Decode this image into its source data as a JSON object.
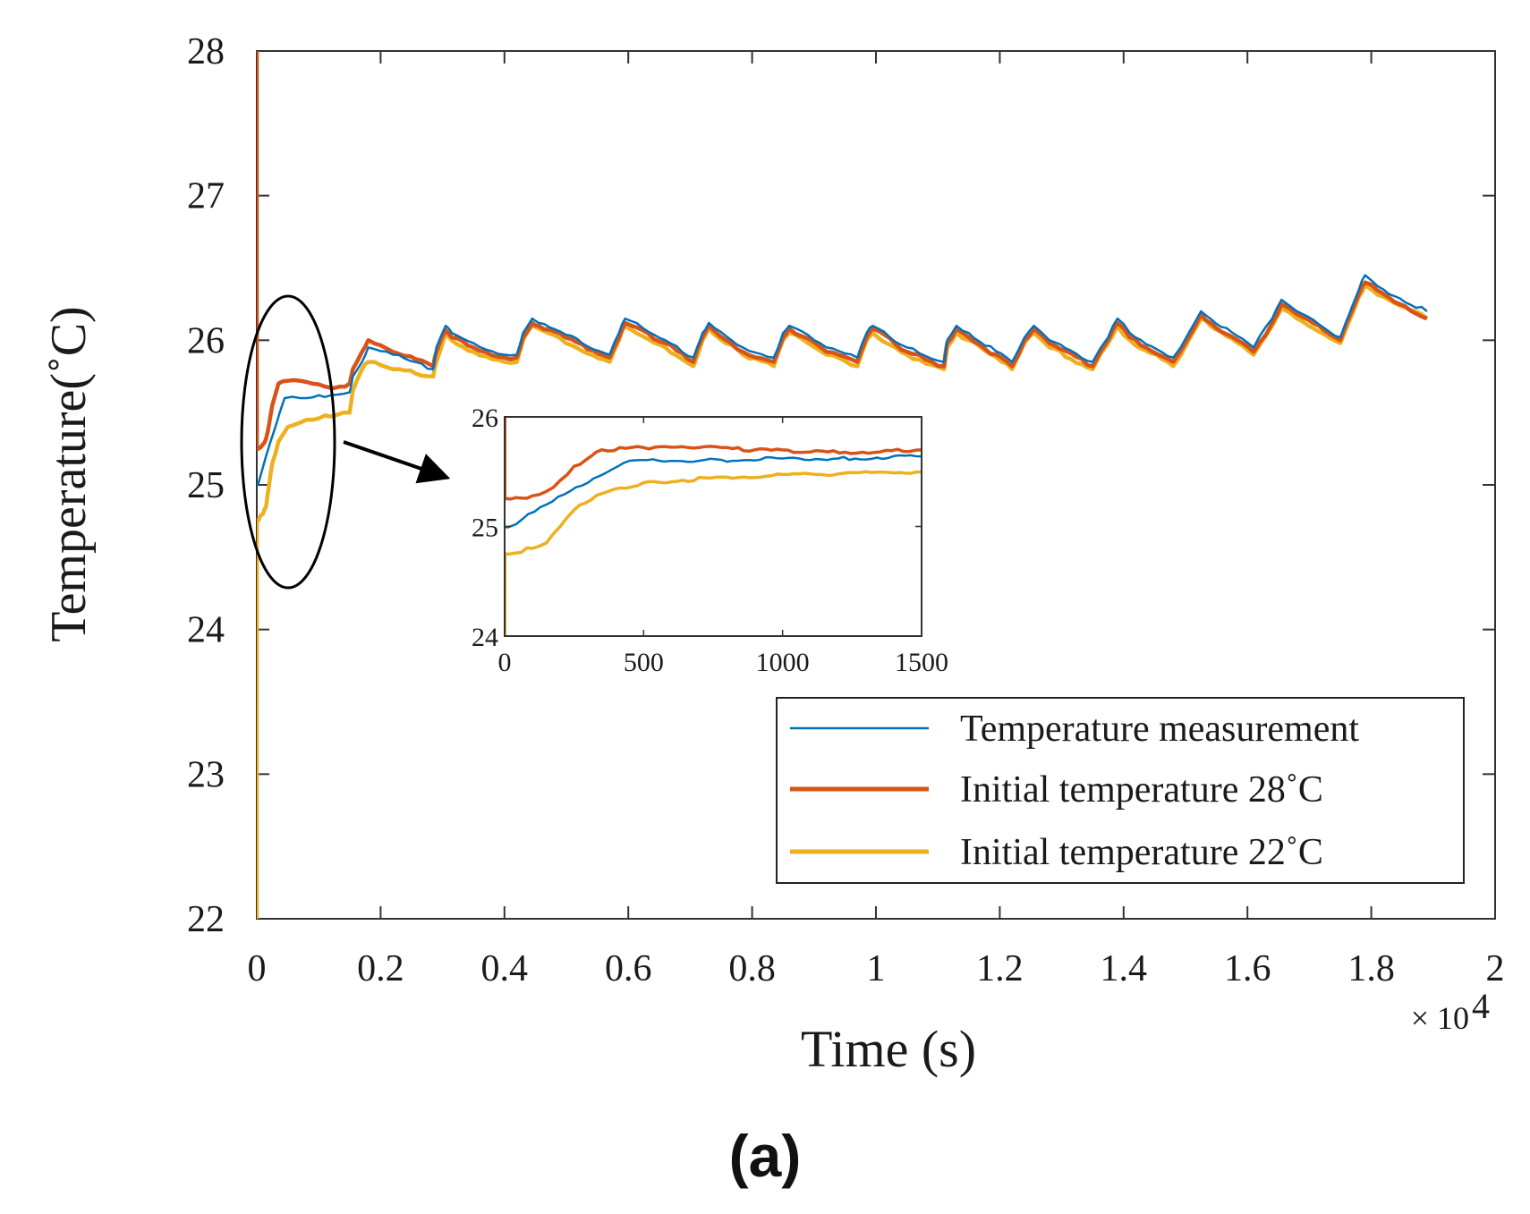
{
  "chart_data": {
    "type": "line",
    "panel_label": "(a)",
    "xlabel": "Time (s)",
    "ylabel": "Temperature(˚C)",
    "x_exponent": "× 10",
    "x_exponent_power": "4",
    "xlim": [
      0,
      20000
    ],
    "ylim": [
      22,
      28
    ],
    "x_ticks": [
      0,
      2000,
      4000,
      6000,
      8000,
      10000,
      12000,
      14000,
      16000,
      18000,
      20000
    ],
    "x_tick_labels": [
      "0",
      "0.2",
      "0.4",
      "0.6",
      "0.8",
      "1",
      "1.2",
      "1.4",
      "1.6",
      "1.8",
      "2"
    ],
    "y_ticks": [
      22,
      23,
      24,
      25,
      26,
      27,
      28
    ],
    "y_tick_labels": [
      "22",
      "23",
      "24",
      "25",
      "26",
      "27",
      "28"
    ],
    "legend_position": "bottom-right",
    "series": [
      {
        "name": "Temperature measurement",
        "color": "#0072BD",
        "x": [
          0,
          20,
          150,
          300,
          450,
          700,
          1000,
          1200,
          1500,
          1550,
          1700,
          1800,
          2200,
          2850,
          2900,
          3050,
          3150,
          3500,
          4000,
          4200,
          4300,
          4450,
          4550,
          5700,
          5850,
          5950,
          6600,
          7050,
          7200,
          7300,
          7850,
          8350,
          8500,
          8600,
          9200,
          9700,
          9850,
          9950,
          10500,
          11100,
          11150,
          11300,
          11500,
          12200,
          12400,
          12550,
          12800,
          13500,
          13750,
          13900,
          14100,
          14800,
          15050,
          15250,
          15400,
          16100,
          16400,
          16550,
          16800,
          17500,
          17800,
          17900,
          18200,
          18900
        ],
        "values": [
          25.0,
          25.0,
          25.2,
          25.4,
          25.6,
          25.6,
          25.62,
          25.62,
          25.64,
          25.75,
          25.85,
          25.95,
          25.9,
          25.8,
          25.95,
          26.1,
          26.05,
          25.98,
          25.9,
          25.9,
          26.05,
          26.15,
          26.12,
          25.9,
          26.05,
          26.15,
          26.0,
          25.88,
          26.05,
          26.12,
          25.95,
          25.88,
          26.05,
          26.1,
          25.95,
          25.88,
          26.05,
          26.1,
          25.95,
          25.85,
          26.0,
          26.1,
          26.05,
          25.85,
          26.02,
          26.1,
          26.0,
          25.85,
          26.02,
          26.15,
          26.05,
          25.88,
          26.05,
          26.2,
          26.15,
          25.95,
          26.15,
          26.28,
          26.2,
          26.02,
          26.35,
          26.45,
          26.35,
          26.2
        ]
      },
      {
        "name": "Initial temperature 28˚C",
        "color": "#D95319",
        "x": [
          0,
          1,
          20,
          100,
          150,
          200,
          250,
          350,
          500,
          700,
          900,
          1100,
          1350,
          1500,
          1550,
          1700,
          1800,
          2200,
          2850,
          2900,
          3050,
          3150,
          3500,
          4000,
          4200,
          4300,
          4450,
          4550,
          5700,
          5850,
          5950,
          6600,
          7050,
          7200,
          7300,
          7850,
          8350,
          8500,
          8600,
          9200,
          9700,
          9850,
          9950,
          10500,
          11100,
          11150,
          11300,
          11500,
          12200,
          12400,
          12550,
          12800,
          13500,
          13750,
          13900,
          14100,
          14800,
          15050,
          15250,
          15400,
          16100,
          16400,
          16550,
          16800,
          17500,
          17800,
          17900,
          18200,
          18900
        ],
        "values": [
          28.0,
          25.25,
          25.25,
          25.28,
          25.32,
          25.42,
          25.55,
          25.7,
          25.72,
          25.72,
          25.7,
          25.68,
          25.68,
          25.7,
          25.8,
          25.92,
          26.0,
          25.92,
          25.82,
          25.92,
          26.07,
          26.02,
          25.95,
          25.88,
          25.88,
          26.02,
          26.12,
          26.1,
          25.88,
          26.02,
          26.12,
          25.98,
          25.85,
          26.02,
          26.1,
          25.92,
          25.85,
          26.02,
          26.08,
          25.92,
          25.85,
          26.02,
          26.08,
          25.92,
          25.82,
          25.98,
          26.08,
          26.02,
          25.82,
          26.0,
          26.08,
          25.98,
          25.82,
          26.0,
          26.12,
          26.02,
          25.85,
          26.02,
          26.18,
          26.12,
          25.92,
          26.12,
          26.25,
          26.18,
          26.0,
          26.32,
          26.4,
          26.32,
          26.15
        ]
      },
      {
        "name": "Initial temperature 22˚C",
        "color": "#EDB120",
        "x": [
          0,
          1,
          20,
          100,
          150,
          200,
          250,
          350,
          500,
          800,
          1100,
          1500,
          1550,
          1700,
          1800,
          2200,
          2850,
          2900,
          3050,
          3150,
          3500,
          4000,
          4200,
          4300,
          4450,
          4550,
          5700,
          5850,
          5950,
          6600,
          7050,
          7200,
          7300,
          7850,
          8350,
          8500,
          8600,
          9200,
          9700,
          9850,
          9950,
          10500,
          11100,
          11150,
          11300,
          11500,
          12200,
          12400,
          12550,
          12800,
          13500,
          13750,
          13900,
          14100,
          14800,
          15050,
          15250,
          15400,
          16100,
          16400,
          16550,
          16800,
          17500,
          17800,
          17900,
          18200,
          18900
        ],
        "values": [
          22.0,
          24.75,
          24.75,
          24.8,
          24.85,
          25.0,
          25.15,
          25.3,
          25.4,
          25.45,
          25.48,
          25.5,
          25.65,
          25.8,
          25.85,
          25.8,
          25.75,
          25.85,
          26.05,
          26.0,
          25.92,
          25.85,
          25.85,
          26.0,
          26.1,
          26.08,
          25.85,
          26.0,
          26.1,
          25.95,
          25.82,
          26.0,
          26.08,
          25.9,
          25.82,
          26.0,
          26.05,
          25.9,
          25.82,
          26.0,
          26.05,
          25.9,
          25.8,
          25.95,
          26.05,
          26.0,
          25.8,
          25.98,
          26.05,
          25.95,
          25.8,
          25.98,
          26.1,
          26.0,
          25.82,
          26.0,
          26.15,
          26.1,
          25.9,
          26.1,
          26.22,
          26.15,
          25.98,
          26.3,
          26.38,
          26.3,
          26.15
        ]
      }
    ],
    "inset": {
      "xlim": [
        0,
        1500
      ],
      "ylim": [
        24,
        26
      ],
      "x_ticks": [
        0,
        500,
        1000,
        1500
      ],
      "x_tick_labels": [
        "0",
        "500",
        "1000",
        "1500"
      ],
      "y_ticks": [
        24,
        25,
        26
      ],
      "y_tick_labels": [
        "24",
        "25",
        "26"
      ]
    }
  }
}
